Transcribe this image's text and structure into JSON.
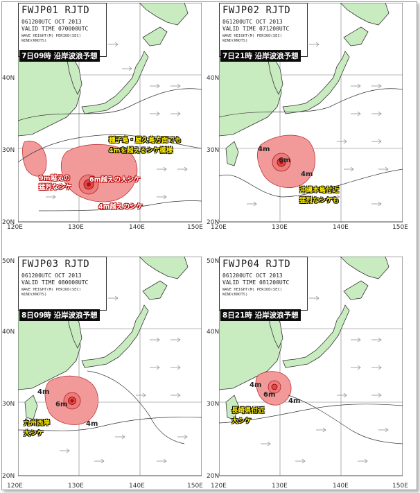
{
  "panels": [
    {
      "code": "FWJP01 RJTD",
      "line1": "061200UTC  OCT  2013",
      "line2": "VALID TIME 070000UTC",
      "line3": "WAVE HEIGHT(M)  PERIOD(SEC)",
      "line4": "WIND(KNOTS)",
      "caption": "7日09時 沿岸波浪予想",
      "annotations": [
        "種子島・屋久島方面でも",
        "4mを越えるシケ模様",
        "9m越えの",
        "猛烈なシケ",
        "6m越えの大シケ",
        "4m越えのシケ"
      ]
    },
    {
      "code": "FWJP02 RJTD",
      "line1": "061200UTC  OCT  2013",
      "line2": "VALID TIME 071200UTC",
      "line3": "WAVE HEIGHT(M)  PERIOD(SEC)",
      "line4": "WIND(KNOTS)",
      "caption": "7日21時 沿岸波浪予想",
      "annotations": [
        "沖縄本島付近",
        "猛烈なシケも",
        "4m",
        "6m",
        "4m"
      ]
    },
    {
      "code": "FWJP03 RJTD",
      "line1": "061200UTC  OCT  2013",
      "line2": "VALID TIME 080000UTC",
      "line3": "WAVE HEIGHT(M)  PERIOD(SEC)",
      "line4": "WIND(KNOTS)",
      "caption": "8日09時 沿岸波浪予想",
      "annotations": [
        "九州西岸",
        "大シケ",
        "4m",
        "6m",
        "4m"
      ]
    },
    {
      "code": "FWJP04 RJTD",
      "line1": "061200UTC  OCT  2013",
      "line2": "VALID TIME 081200UTC",
      "line3": "WAVE HEIGHT(M)  PERIOD(SEC)",
      "line4": "WIND(KNOTS)",
      "caption": "8日21時 沿岸波浪予想",
      "annotations": [
        "長崎県付近",
        "大シケ",
        "4m",
        "6m",
        "4m"
      ]
    }
  ],
  "axes": {
    "lat": [
      "50N",
      "40N",
      "30N",
      "20N"
    ],
    "lon": [
      "120E",
      "130E",
      "140E",
      "150E"
    ]
  },
  "colors": {
    "land": "#c8ecc0",
    "sea": "#ffffff",
    "storm": "#f29a9a",
    "storm_core": "#e04848"
  }
}
